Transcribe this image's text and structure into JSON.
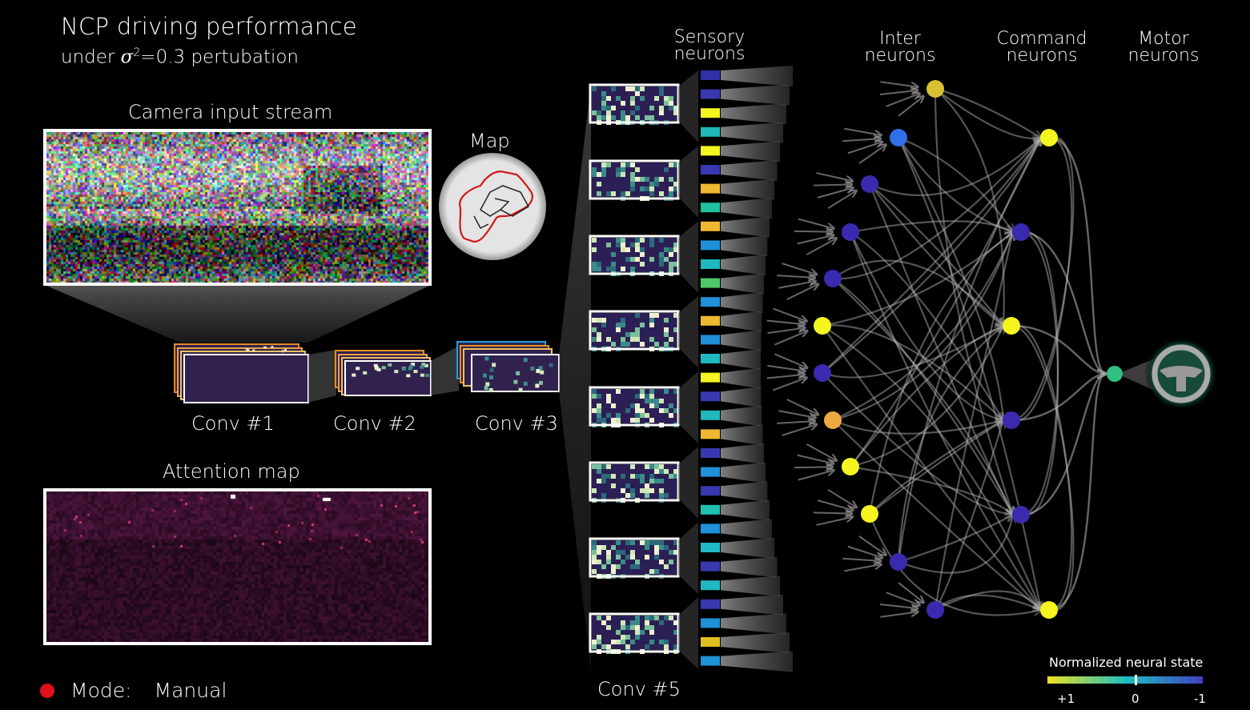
{
  "header": {
    "title": "NCP driving performance",
    "subtitle_prefix": "under ",
    "subtitle_sigma": "σ",
    "subtitle_sup": "2",
    "subtitle_suffix": "=0.3 pertubation"
  },
  "panels": {
    "camera_label": "Camera input stream",
    "map_label": "Map",
    "attention_label": "Attention map",
    "conv1": "Conv #1",
    "conv2": "Conv #2",
    "conv3": "Conv #3",
    "conv5": "Conv #5"
  },
  "columns": {
    "sensory": [
      "Sensory",
      "neurons"
    ],
    "inter": [
      "Inter",
      "neurons"
    ],
    "command": [
      "Command",
      "neurons"
    ],
    "motor": [
      "Motor",
      "neurons"
    ]
  },
  "mode": {
    "label": "Mode:",
    "value": "Manual",
    "indicator_color": "#e0101a"
  },
  "legend": {
    "title": "Normalized neural state",
    "tick_left": "+1",
    "tick_mid": "0",
    "tick_right": "-1",
    "colors": [
      "#f0e020",
      "#1ec0c0",
      "#4040c0"
    ]
  },
  "sensory_colors": [
    "#3030a8",
    "#3838b0",
    "#f5f520",
    "#20b8b8",
    "#f5f520",
    "#3838b0",
    "#f0b830",
    "#20c0a0",
    "#f0b830",
    "#2090d8",
    "#20b8c0",
    "#50c868",
    "#2090d8",
    "#f0b830",
    "#2090d8",
    "#20b8c0",
    "#f5f520",
    "#3838b0",
    "#20b8b8",
    "#f0b830",
    "#3838b0",
    "#2090d8",
    "#3838b0",
    "#20c0b0",
    "#2090d8",
    "#20b8c8",
    "#3838b0",
    "#20b8c0",
    "#3838b0",
    "#2090d8",
    "#e0c020",
    "#2090d8"
  ],
  "inter_colors": [
    "#d8c030",
    "#3070e8",
    "#3a2ab0",
    "#3a2ab0",
    "#3a2ab0",
    "#f5f520",
    "#3a2ab0",
    "#f0a840",
    "#f5f520",
    "#f5f520",
    "#3a2ab0",
    "#3a2ab0"
  ],
  "command_colors": [
    "#f5f520",
    "#3a2ab0",
    "#f5f520",
    "#3a2ab0",
    "#3a2ab0",
    "#f5f520"
  ],
  "motor_color": "#30c080"
}
